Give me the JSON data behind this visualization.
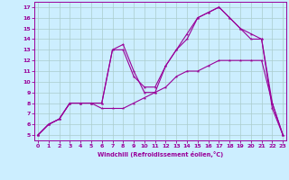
{
  "line1_x": [
    0,
    1,
    2,
    3,
    4,
    5,
    6,
    7,
    8,
    9,
    10,
    11,
    12,
    13,
    14,
    15,
    16,
    17,
    18,
    19,
    20,
    21,
    22,
    23
  ],
  "line1_y": [
    5,
    6,
    6.5,
    8,
    8,
    8,
    7.5,
    7.5,
    7.5,
    8,
    8.5,
    9,
    9.5,
    10.5,
    11,
    11,
    11.5,
    12,
    12,
    12,
    12,
    12,
    8,
    5
  ],
  "line2_x": [
    0,
    1,
    2,
    3,
    4,
    5,
    6,
    7,
    8,
    9,
    10,
    11,
    12,
    13,
    14,
    15,
    16,
    17,
    18,
    19,
    20,
    21,
    22,
    23
  ],
  "line2_y": [
    5,
    6,
    6.5,
    8,
    8,
    8,
    8,
    13,
    13,
    10.5,
    9.5,
    9.5,
    11.5,
    13,
    14.5,
    16,
    16.5,
    17,
    16,
    15,
    14.5,
    14,
    8,
    5
  ],
  "line3_x": [
    0,
    1,
    2,
    3,
    4,
    5,
    6,
    7,
    8,
    9,
    10,
    11,
    12,
    13,
    14,
    15,
    16,
    17,
    18,
    19,
    20,
    21,
    22,
    23
  ],
  "line3_y": [
    5,
    6,
    6.5,
    8,
    8,
    8,
    8,
    13,
    13.5,
    11,
    9,
    9,
    11.5,
    13,
    14,
    16,
    16.5,
    17,
    16,
    15,
    14,
    14,
    7.5,
    5
  ],
  "color": "#990099",
  "bg_color": "#cceeff",
  "grid_color": "#aacccc",
  "xlabel": "Windchill (Refroidissement éolien,°C)",
  "ylabel_ticks": [
    5,
    6,
    7,
    8,
    9,
    10,
    11,
    12,
    13,
    14,
    15,
    16,
    17
  ],
  "xlabel_ticks": [
    0,
    1,
    2,
    3,
    4,
    5,
    6,
    7,
    8,
    9,
    10,
    11,
    12,
    13,
    14,
    15,
    16,
    17,
    18,
    19,
    20,
    21,
    22,
    23
  ],
  "xlim": [
    -0.3,
    23.3
  ],
  "ylim": [
    4.5,
    17.5
  ]
}
